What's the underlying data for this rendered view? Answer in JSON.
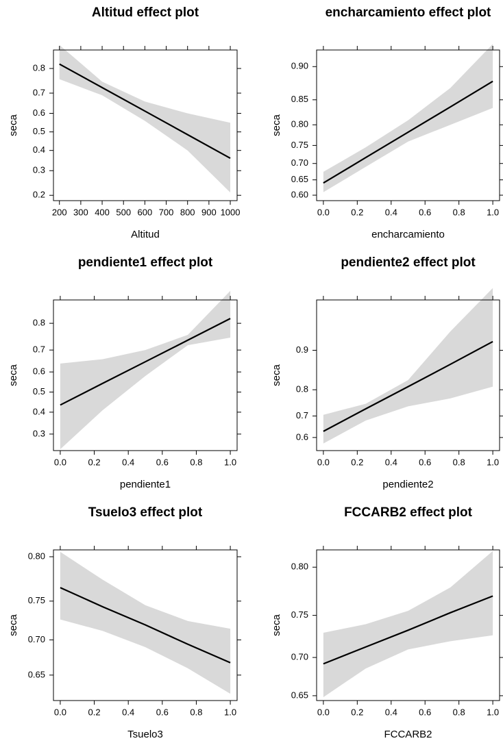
{
  "chart_data": [
    {
      "type": "line",
      "title": "Altitud effect plot",
      "xlabel": "Altitud",
      "ylabel": "seca",
      "yscale": "logit",
      "x": [
        200,
        400,
        600,
        800,
        1000
      ],
      "values": [
        0.815,
        0.725,
        0.612,
        0.485,
        0.36
      ],
      "lower": [
        0.76,
        0.69,
        0.56,
        0.4,
        0.21
      ],
      "upper": [
        0.87,
        0.75,
        0.66,
        0.6,
        0.55
      ],
      "color": "#000000",
      "band_color": "#d9d9d9",
      "xlim": [
        172,
        1032
      ],
      "xticks": [
        200,
        300,
        400,
        500,
        600,
        700,
        800,
        900,
        1000
      ],
      "ylim": [
        0.182,
        0.857
      ],
      "yticks": [
        0.2,
        0.3,
        0.4,
        0.5,
        0.6,
        0.7,
        0.8
      ]
    },
    {
      "type": "line",
      "title": "encharcamiento effect plot",
      "xlabel": "encharcamiento",
      "ylabel": "seca",
      "yscale": "logit",
      "x": [
        0,
        0.25,
        0.5,
        0.75,
        1
      ],
      "values": [
        0.64,
        0.717,
        0.783,
        0.837,
        0.88
      ],
      "lower": [
        0.61,
        0.69,
        0.76,
        0.8,
        0.835
      ],
      "upper": [
        0.675,
        0.745,
        0.81,
        0.87,
        0.925
      ],
      "color": "#000000",
      "band_color": "#d9d9d9",
      "xlim": [
        -0.04,
        1.04
      ],
      "xticks": [
        {
          "value": 0,
          "label": "0.0"
        },
        0.2,
        0.4,
        0.6,
        0.8,
        {
          "value": 1,
          "label": "1.0"
        }
      ],
      "ylim": [
        0.5816,
        0.919
      ],
      "yticks": [
        {
          "value": 0.6,
          "label": "0.60"
        },
        0.65,
        {
          "value": 0.7,
          "label": "0.70"
        },
        0.75,
        {
          "value": 0.8,
          "label": "0.80"
        },
        0.85,
        {
          "value": 0.9,
          "label": "0.90"
        }
      ]
    },
    {
      "type": "line",
      "title": "pendiente1 effect plot",
      "xlabel": "pendiente1",
      "ylabel": "seca",
      "yscale": "logit",
      "x": [
        0,
        0.25,
        0.5,
        0.75,
        1
      ],
      "values": [
        0.435,
        0.544,
        0.648,
        0.74,
        0.815
      ],
      "lower": [
        0.24,
        0.41,
        0.58,
        0.72,
        0.75
      ],
      "upper": [
        0.64,
        0.66,
        0.7,
        0.76,
        0.885
      ],
      "color": "#000000",
      "band_color": "#d9d9d9",
      "xlim": [
        -0.04,
        1.04
      ],
      "xticks": [
        {
          "value": 0,
          "label": "0.0"
        },
        0.2,
        0.4,
        0.6,
        0.8,
        {
          "value": 1,
          "label": "1.0"
        }
      ],
      "ylim": [
        0.235,
        0.865
      ],
      "yticks": [
        0.3,
        0.4,
        0.5,
        0.6,
        0.7,
        0.8
      ]
    },
    {
      "type": "line",
      "title": "pendiente2 effect plot",
      "xlabel": "pendiente2",
      "ylabel": "seca",
      "yscale": "logit",
      "x": [
        0,
        0.25,
        0.5,
        0.75,
        1
      ],
      "values": [
        0.63,
        0.73,
        0.81,
        0.871,
        0.915
      ],
      "lower": [
        0.57,
        0.68,
        0.74,
        0.77,
        0.81
      ],
      "upper": [
        0.705,
        0.75,
        0.83,
        0.93,
        0.97
      ],
      "color": "#000000",
      "band_color": "#d9d9d9",
      "xlim": [
        -0.04,
        1.04
      ],
      "xticks": [
        {
          "value": 0,
          "label": "0.0"
        },
        0.2,
        0.4,
        0.6,
        0.8,
        {
          "value": 1,
          "label": "1.0"
        }
      ],
      "ylim": [
        0.534,
        0.962
      ],
      "yticks": [
        0.6,
        0.7,
        0.8,
        0.9
      ]
    },
    {
      "type": "line",
      "title": "Tsuelo3 effect plot",
      "xlabel": "Tsuelo3",
      "ylabel": "seca",
      "yscale": "logit",
      "x": [
        0,
        0.25,
        0.5,
        0.75,
        1
      ],
      "values": [
        0.766,
        0.743,
        0.72,
        0.694,
        0.668
      ],
      "lower": [
        0.727,
        0.712,
        0.69,
        0.66,
        0.622
      ],
      "upper": [
        0.805,
        0.775,
        0.745,
        0.725,
        0.715
      ],
      "color": "#000000",
      "band_color": "#d9d9d9",
      "xlim": [
        -0.04,
        1.04
      ],
      "xticks": [
        {
          "value": 0,
          "label": "0.0"
        },
        0.2,
        0.4,
        0.6,
        0.8,
        {
          "value": 1,
          "label": "1.0"
        }
      ],
      "ylim": [
        0.6116,
        0.807
      ],
      "yticks": [
        0.65,
        {
          "value": 0.7,
          "label": "0.70"
        },
        0.75,
        {
          "value": 0.8,
          "label": "0.80"
        }
      ]
    },
    {
      "type": "line",
      "title": "FCCARB2 effect plot",
      "xlabel": "FCCARB2",
      "ylabel": "seca",
      "yscale": "logit",
      "x": [
        0,
        0.25,
        0.5,
        0.75,
        1
      ],
      "values": [
        0.692,
        0.713,
        0.733,
        0.753,
        0.771
      ],
      "lower": [
        0.648,
        0.686,
        0.71,
        0.72,
        0.727
      ],
      "upper": [
        0.73,
        0.74,
        0.755,
        0.78,
        0.815
      ],
      "color": "#000000",
      "band_color": "#d9d9d9",
      "xlim": [
        -0.04,
        1.04
      ],
      "xticks": [
        {
          "value": 0,
          "label": "0.0"
        },
        0.2,
        0.4,
        0.6,
        0.8,
        {
          "value": 1,
          "label": "1.0"
        }
      ],
      "ylim": [
        0.6434,
        0.816
      ],
      "yticks": [
        0.65,
        {
          "value": 0.7,
          "label": "0.70"
        },
        0.75,
        {
          "value": 0.8,
          "label": "0.80"
        }
      ]
    }
  ]
}
